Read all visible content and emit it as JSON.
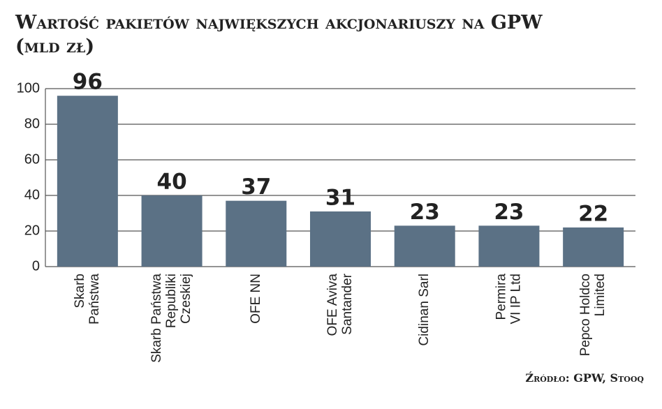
{
  "chart_data": {
    "type": "bar",
    "title": "Wartość pakietów największych akcjonariuszy na GPW (mld zł)",
    "source": "Źródło: GPW, Stooq",
    "categories": [
      [
        "Skarb",
        "Państwa"
      ],
      [
        "Skarb Państwa",
        "Republiki",
        "Czeskiej"
      ],
      [
        "OFE NN"
      ],
      [
        "OFE Aviva",
        "Santander"
      ],
      [
        "Cidinan Sarl"
      ],
      [
        "Permira",
        "VI IP Ltd"
      ],
      [
        "Pepco Holdco",
        "Limited"
      ]
    ],
    "values": [
      96,
      40,
      37,
      31,
      23,
      23,
      22
    ],
    "color": "#5b7185",
    "ylim": [
      0,
      100
    ],
    "yticks": [
      0,
      20,
      40,
      60,
      80,
      100
    ],
    "grid": true
  }
}
